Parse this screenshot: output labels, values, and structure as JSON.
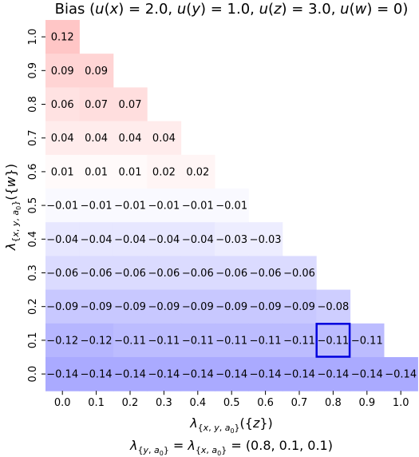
{
  "chart_data": {
    "type": "heatmap",
    "title": "Bias (u(x) = 2.0, u(y) = 1.0, u(z) = 3.0, u(w) = 0)",
    "xlabel": "λ{x,y,a0}({z})",
    "ylabel": "λ{x,y,a0}({w})",
    "caption": "λ{y,a0} = λ{x,a0} = (0.8, 0.1, 0.1)",
    "x_ticks": [
      "0.0",
      "0.1",
      "0.2",
      "0.3",
      "0.4",
      "0.5",
      "0.6",
      "0.7",
      "0.8",
      "0.9",
      "1.0"
    ],
    "y_ticks": [
      "0.0",
      "0.1",
      "0.2",
      "0.3",
      "0.4",
      "0.5",
      "0.6",
      "0.7",
      "0.8",
      "0.9",
      "1.0"
    ],
    "rows": [
      {
        "y": "1.0",
        "values": [
          0.12
        ],
        "labels": [
          "0.12"
        ]
      },
      {
        "y": "0.9",
        "values": [
          0.09,
          0.09
        ],
        "labels": [
          "0.09",
          "0.09"
        ]
      },
      {
        "y": "0.8",
        "values": [
          0.06,
          0.07,
          0.07
        ],
        "labels": [
          "0.06",
          "0.07",
          "0.07"
        ]
      },
      {
        "y": "0.7",
        "values": [
          0.04,
          0.04,
          0.04,
          0.04
        ],
        "labels": [
          "0.04",
          "0.04",
          "0.04",
          "0.04"
        ]
      },
      {
        "y": "0.6",
        "values": [
          0.01,
          0.01,
          0.01,
          0.02,
          0.02
        ],
        "labels": [
          "0.01",
          "0.01",
          "0.01",
          "0.02",
          "0.02"
        ]
      },
      {
        "y": "0.5",
        "values": [
          -0.01,
          -0.01,
          -0.01,
          -0.01,
          -0.01,
          -0.01
        ],
        "labels": [
          "−0.01",
          "−0.01",
          "−0.01",
          "−0.01",
          "−0.01",
          "−0.01"
        ]
      },
      {
        "y": "0.4",
        "values": [
          -0.04,
          -0.04,
          -0.04,
          -0.04,
          -0.04,
          -0.03,
          -0.03
        ],
        "labels": [
          "−0.04",
          "−0.04",
          "−0.04",
          "−0.04",
          "−0.04",
          "−0.03",
          "−0.03"
        ]
      },
      {
        "y": "0.3",
        "values": [
          -0.06,
          -0.06,
          -0.06,
          -0.06,
          -0.06,
          -0.06,
          -0.06,
          -0.06
        ],
        "labels": [
          "−0.06",
          "−0.06",
          "−0.06",
          "−0.06",
          "−0.06",
          "−0.06",
          "−0.06",
          "−0.06"
        ]
      },
      {
        "y": "0.2",
        "values": [
          -0.09,
          -0.09,
          -0.09,
          -0.09,
          -0.09,
          -0.09,
          -0.09,
          -0.09,
          -0.08
        ],
        "labels": [
          "−0.09",
          "−0.09",
          "−0.09",
          "−0.09",
          "−0.09",
          "−0.09",
          "−0.09",
          "−0.09",
          "−0.08"
        ]
      },
      {
        "y": "0.1",
        "values": [
          -0.12,
          -0.12,
          -0.11,
          -0.11,
          -0.11,
          -0.11,
          -0.11,
          -0.11,
          -0.11,
          -0.11
        ],
        "labels": [
          "−0.12",
          "−0.12",
          "−0.11",
          "−0.11",
          "−0.11",
          "−0.11",
          "−0.11",
          "−0.11",
          "−0.11",
          "−0.11"
        ]
      },
      {
        "y": "0.0",
        "values": [
          -0.14,
          -0.14,
          -0.14,
          -0.14,
          -0.14,
          -0.14,
          -0.14,
          -0.14,
          -0.14,
          -0.14,
          -0.14
        ],
        "labels": [
          "−0.14",
          "−0.14",
          "−0.14",
          "−0.14",
          "−0.14",
          "−0.14",
          "−0.14",
          "−0.14",
          "−0.14",
          "−0.14",
          "−0.14"
        ]
      }
    ],
    "highlight": {
      "x": "0.8",
      "y": "0.1",
      "color": "#0000dd"
    },
    "colormap": {
      "negative": "#aaaaff",
      "zero": "#ffffff",
      "positive": "#ffbcbc",
      "vmax_abs": 0.14
    }
  }
}
